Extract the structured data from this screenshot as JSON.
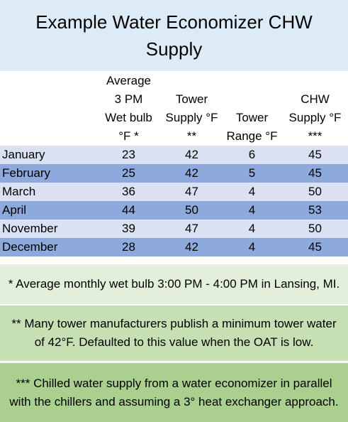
{
  "title": "Example Water Economizer CHW Supply",
  "table": {
    "headers": [
      [],
      [
        "Average",
        "3 PM",
        "Wet bulb",
        "°F *"
      ],
      [
        "Tower",
        "Supply °F",
        "**"
      ],
      [
        "Tower",
        "Range °F"
      ],
      [
        "CHW",
        "Supply °F",
        "***"
      ]
    ],
    "rows": [
      [
        "January",
        23,
        42,
        6,
        45
      ],
      [
        "February",
        25,
        42,
        5,
        45
      ],
      [
        "March",
        36,
        47,
        4,
        50
      ],
      [
        "April",
        44,
        50,
        4,
        53
      ],
      [
        "November",
        39,
        47,
        4,
        50
      ],
      [
        "December",
        28,
        42,
        4,
        45
      ]
    ]
  },
  "notes": [
    "* Average monthly wet bulb  3:00 PM - 4:00 PM in Lansing, MI.",
    "** Many tower manufacturers publish a minimum tower water of 42°F. Defaulted to this value when the OAT is low.",
    "*** Chilled water supply from a water economizer in parallel with the chillers and assuming a 3° heat exchanger approach."
  ]
}
